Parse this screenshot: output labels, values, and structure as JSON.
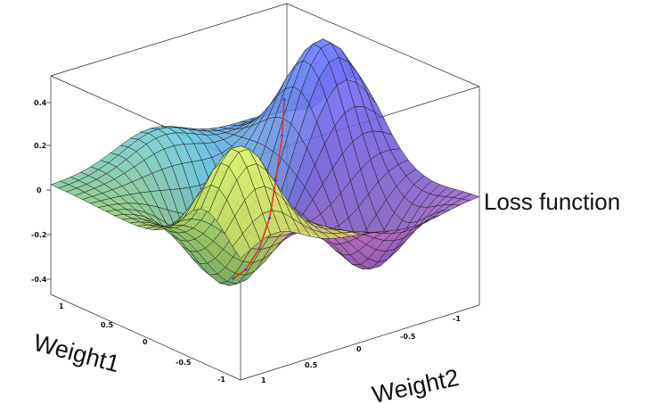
{
  "labels": {
    "z_axis": "Loss function",
    "x_axis": "Weight1",
    "y_axis": "Weight2"
  },
  "z_ticks": [
    "0.4",
    "0.2",
    "0",
    "-0.2",
    "-0.4"
  ],
  "w1_ticks": [
    "1",
    "0.5",
    "0",
    "-0.5",
    "-1"
  ],
  "w2_ticks": [
    "1",
    "0.5",
    "0",
    "-0.5",
    "-1"
  ],
  "surface": {
    "type": "surface",
    "x_range": [
      -1.2,
      1.2
    ],
    "y_range": [
      -1.2,
      1.2
    ],
    "z_range": [
      -0.5,
      0.5
    ],
    "grid": 24,
    "colors": {
      "magenta": "#d978c8",
      "violet": "#6a5ae0",
      "cyan": "#62c8e8",
      "green": "#a8d860",
      "yellow": "#e8e070"
    },
    "path_colors": [
      "#e83020",
      "#3050e0"
    ]
  }
}
